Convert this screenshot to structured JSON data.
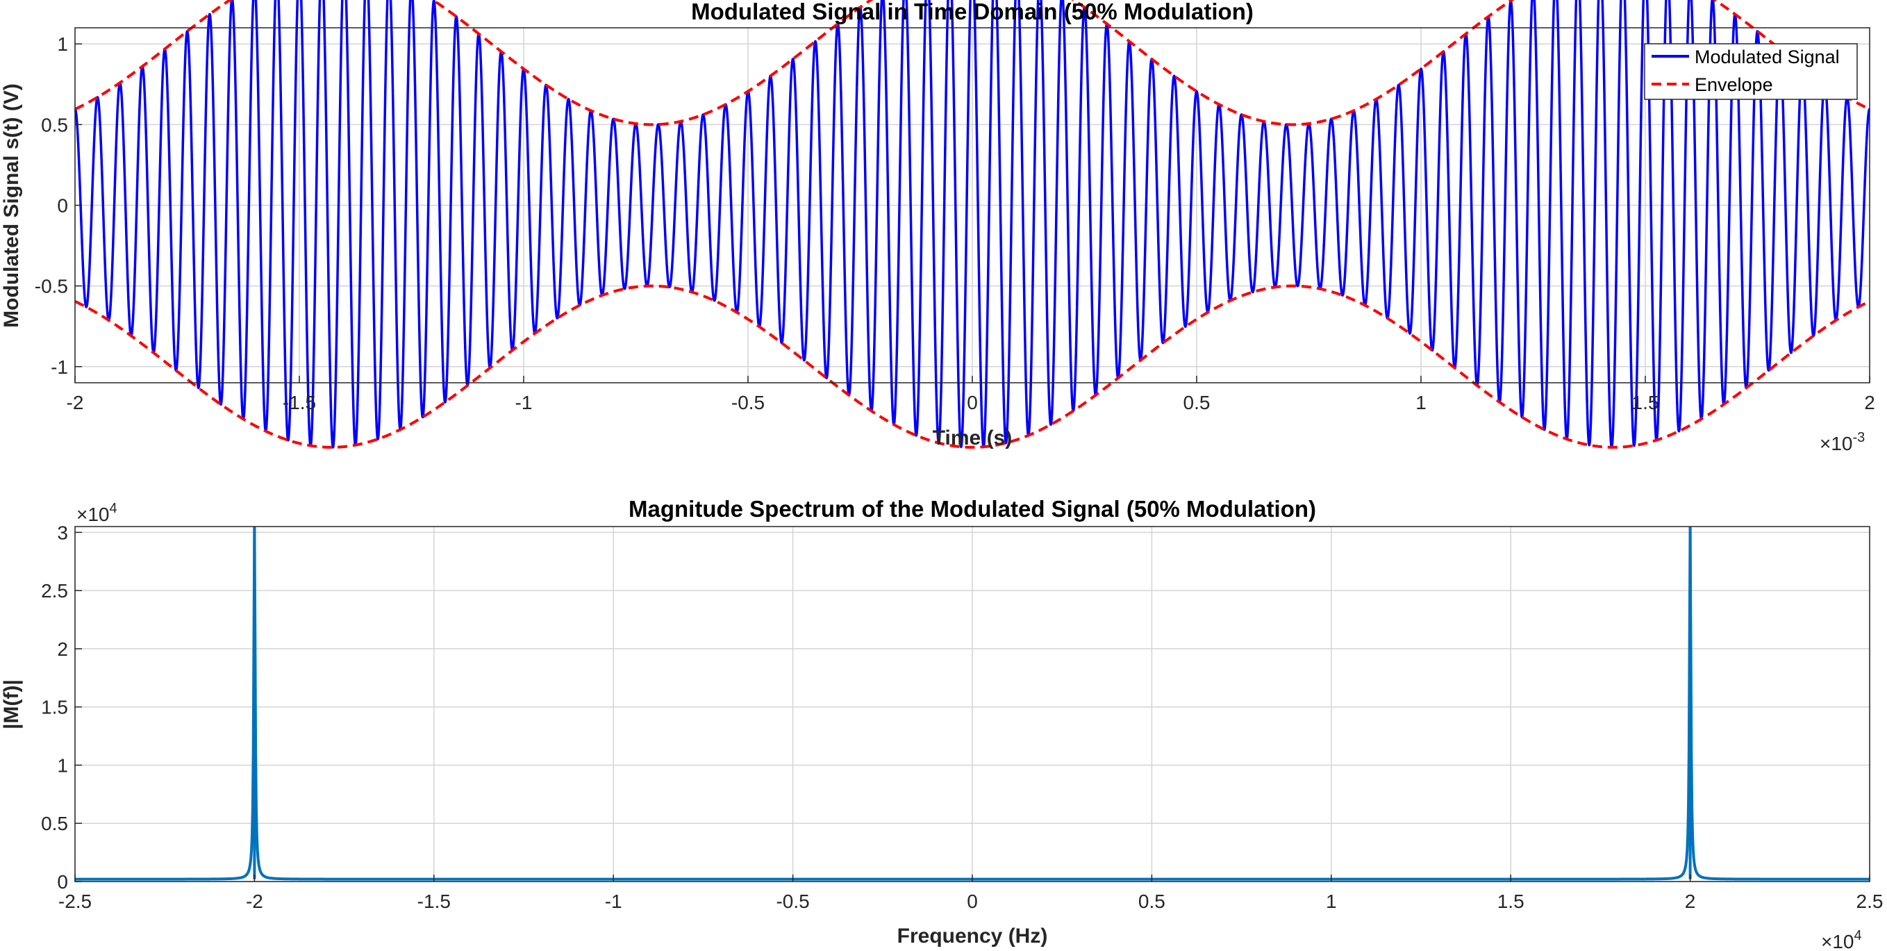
{
  "chart_data": [
    {
      "type": "line",
      "title": "Modulated Signal in Time Domain (50% Modulation)",
      "xlabel": "Time (s)",
      "ylabel": "Modulated Signal s(t) (V)",
      "x_exponent_base": "×10",
      "x_exponent_power": "-3",
      "xlim": [
        -2,
        2
      ],
      "ylim": [
        -1.1,
        1.1
      ],
      "x_scale": 0.001,
      "x_ticks": [
        "-2",
        "-1.5",
        "-1",
        "-0.5",
        "0",
        "0.5",
        "1",
        "1.5",
        "2"
      ],
      "y_ticks": [
        "-1",
        "-0.5",
        "0",
        "0.5",
        "1"
      ],
      "grid": true,
      "legend_position": "top-right",
      "carrier_frequency_hz": 20000,
      "message_frequency_hz": 700,
      "modulation_index": 0.5,
      "series": [
        {
          "name": "Modulated Signal",
          "style": "solid",
          "color": "#0000ff",
          "expression": "(1 + 0.5*cos(2*pi*700*t)) * cos(2*pi*20000*t)"
        },
        {
          "name": "Envelope",
          "style": "dashed",
          "color": "#ff0000",
          "expression": "±(1 + 0.5*cos(2*pi*700*t))"
        }
      ]
    },
    {
      "type": "line",
      "title": "Magnitude Spectrum of the Modulated Signal (50% Modulation)",
      "xlabel": "Frequency (Hz)",
      "ylabel": "|M(f)|",
      "x_exponent_base": "×10",
      "x_exponent_power": "4",
      "y_exponent_base": "×10",
      "y_exponent_power": "4",
      "xlim": [
        -2.5,
        2.5
      ],
      "ylim": [
        0,
        3.05
      ],
      "x_ticks": [
        "-2.5",
        "-2",
        "-1.5",
        "-1",
        "-0.5",
        "0",
        "0.5",
        "1",
        "1.5",
        "2",
        "2.5"
      ],
      "y_ticks": [
        "0",
        "0.5",
        "1",
        "1.5",
        "2",
        "2.5",
        "3"
      ],
      "grid": true,
      "series": [
        {
          "name": "",
          "color": "#0072bd",
          "peaks": [
            {
              "x": -2,
              "y": 3.05
            },
            {
              "x": 2,
              "y": 3.05
            }
          ],
          "baseline": 0.02
        }
      ]
    }
  ]
}
